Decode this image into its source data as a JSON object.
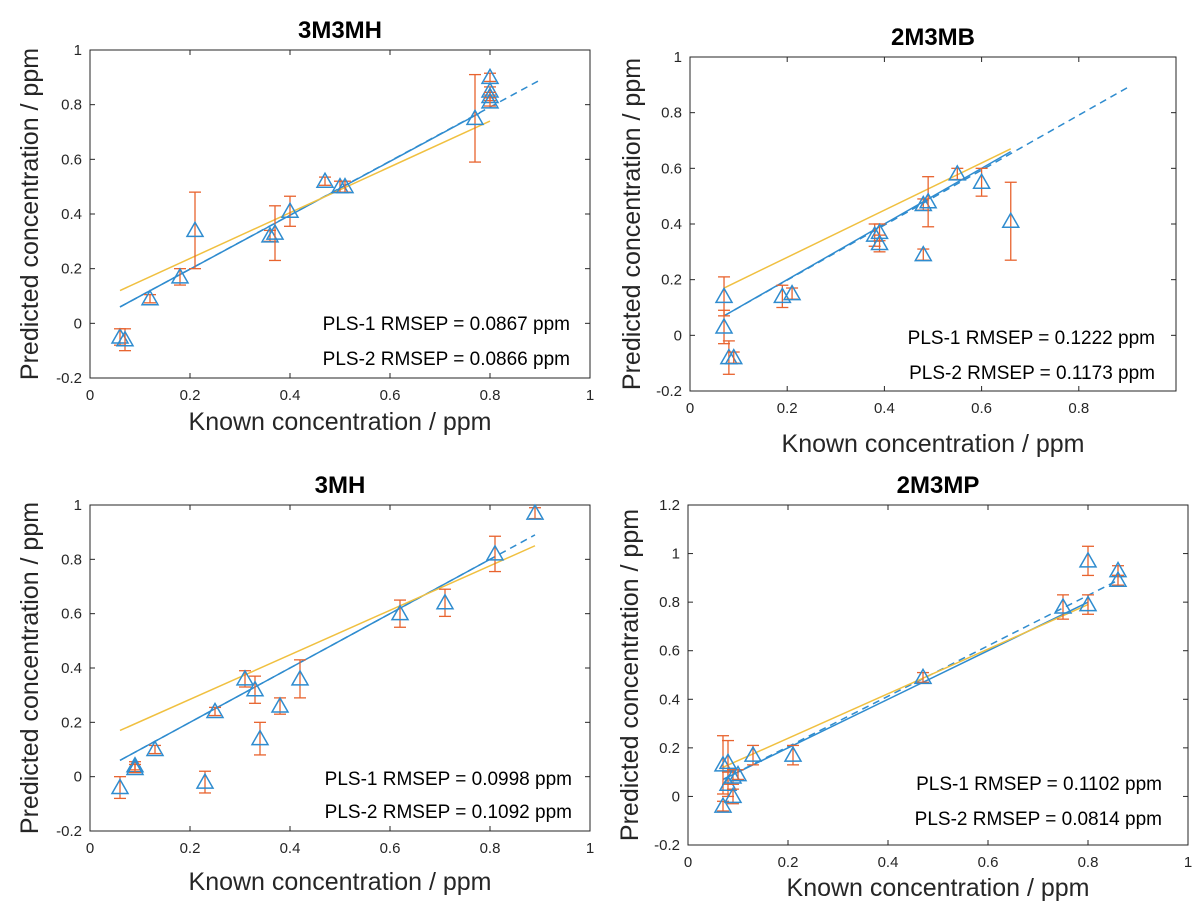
{
  "chart_data": [
    {
      "type": "scatter",
      "title": "3M3MH",
      "xlabel": "Known concentration / ppm",
      "ylabel": "Predicted concentration / ppm",
      "xlim": [
        0,
        1
      ],
      "ylim": [
        -0.2,
        1
      ],
      "xticks": [
        "0",
        "0.2",
        "0.4",
        "0.6",
        "0.8",
        "1"
      ],
      "yticks": [
        "-0.2",
        "0",
        "0.2",
        "0.4",
        "0.6",
        "0.8",
        "1"
      ],
      "grid": false,
      "points": [
        {
          "x": 0.06,
          "y": -0.05,
          "err": 0.03
        },
        {
          "x": 0.07,
          "y": -0.06,
          "err": 0.04
        },
        {
          "x": 0.12,
          "y": 0.09,
          "err": 0.015
        },
        {
          "x": 0.18,
          "y": 0.17,
          "err": 0.03
        },
        {
          "x": 0.21,
          "y": 0.34,
          "err": 0.14
        },
        {
          "x": 0.36,
          "y": 0.32,
          "err": 0.02
        },
        {
          "x": 0.37,
          "y": 0.33,
          "err": 0.1
        },
        {
          "x": 0.4,
          "y": 0.41,
          "err": 0.055
        },
        {
          "x": 0.47,
          "y": 0.52,
          "err": 0.015
        },
        {
          "x": 0.5,
          "y": 0.5,
          "err": 0.02
        },
        {
          "x": 0.51,
          "y": 0.5,
          "err": 0.02
        },
        {
          "x": 0.77,
          "y": 0.75,
          "err": 0.16
        },
        {
          "x": 0.8,
          "y": 0.9,
          "err": 0.015
        },
        {
          "x": 0.8,
          "y": 0.85,
          "err": 0.015
        },
        {
          "x": 0.8,
          "y": 0.83,
          "err": 0.015
        },
        {
          "x": 0.8,
          "y": 0.81,
          "err": 0.015
        }
      ],
      "fit_lines": [
        {
          "style": "dashed",
          "color": "#2f8ccf",
          "x": [
            0.06,
            0.9
          ],
          "y": [
            0.06,
            0.89
          ]
        },
        {
          "style": "solid",
          "color": "#2f8ccf",
          "x": [
            0.06,
            0.78
          ],
          "y": [
            0.06,
            0.77
          ]
        },
        {
          "style": "solid",
          "color": "#f0c040",
          "x": [
            0.06,
            0.8
          ],
          "y": [
            0.12,
            0.74
          ]
        }
      ],
      "annotations": [
        "PLS-1 RMSEP = 0.0867 ppm",
        "PLS-2 RMSEP = 0.0866 ppm"
      ]
    },
    {
      "type": "scatter",
      "title": "2M3MB",
      "xlabel": "Known concentration / ppm",
      "ylabel": "Predicted concentration / ppm",
      "xlim": [
        0,
        1
      ],
      "ylim": [
        -0.2,
        1
      ],
      "xticks": [
        "0",
        "0.2",
        "0.4",
        "0.6",
        "0.8",
        ""
      ],
      "yticks": [
        "-0.2",
        "0",
        "0.2",
        "0.4",
        "0.6",
        "0.8",
        "1"
      ],
      "grid": false,
      "points": [
        {
          "x": 0.07,
          "y": 0.14,
          "err": 0.07
        },
        {
          "x": 0.07,
          "y": 0.03,
          "err": 0.06
        },
        {
          "x": 0.08,
          "y": -0.08,
          "err": 0.06
        },
        {
          "x": 0.09,
          "y": -0.08,
          "err": 0.02
        },
        {
          "x": 0.19,
          "y": 0.14,
          "err": 0.04
        },
        {
          "x": 0.21,
          "y": 0.15,
          "err": 0.02
        },
        {
          "x": 0.38,
          "y": 0.36,
          "err": 0.04
        },
        {
          "x": 0.39,
          "y": 0.37,
          "err": 0.03
        },
        {
          "x": 0.39,
          "y": 0.33,
          "err": 0.03
        },
        {
          "x": 0.48,
          "y": 0.47,
          "err": 0.02
        },
        {
          "x": 0.48,
          "y": 0.29,
          "err": 0.02
        },
        {
          "x": 0.49,
          "y": 0.48,
          "err": 0.09
        },
        {
          "x": 0.55,
          "y": 0.58,
          "err": 0.02
        },
        {
          "x": 0.6,
          "y": 0.55,
          "err": 0.05
        },
        {
          "x": 0.66,
          "y": 0.41,
          "err": 0.14
        }
      ],
      "fit_lines": [
        {
          "style": "dashed",
          "color": "#2f8ccf",
          "x": [
            0.07,
            0.9
          ],
          "y": [
            0.07,
            0.89
          ]
        },
        {
          "style": "solid",
          "color": "#2f8ccf",
          "x": [
            0.07,
            0.66
          ],
          "y": [
            0.07,
            0.66
          ]
        },
        {
          "style": "solid",
          "color": "#f0c040",
          "x": [
            0.07,
            0.66
          ],
          "y": [
            0.17,
            0.67
          ]
        }
      ],
      "annotations": [
        "PLS-1 RMSEP = 0.1222 ppm",
        "PLS-2 RMSEP = 0.1173 ppm"
      ]
    },
    {
      "type": "scatter",
      "title": "3MH",
      "xlabel": "Known concentration / ppm",
      "ylabel": "Predicted concentration / ppm",
      "xlim": [
        0,
        1
      ],
      "ylim": [
        -0.2,
        1
      ],
      "xticks": [
        "0",
        "0.2",
        "0.4",
        "0.6",
        "0.8",
        "1"
      ],
      "yticks": [
        "-0.2",
        "0",
        "0.2",
        "0.4",
        "0.6",
        "0.8",
        "1"
      ],
      "grid": false,
      "points": [
        {
          "x": 0.06,
          "y": -0.04,
          "err": 0.04
        },
        {
          "x": 0.09,
          "y": 0.04,
          "err": 0.015
        },
        {
          "x": 0.09,
          "y": 0.03,
          "err": 0.015
        },
        {
          "x": 0.13,
          "y": 0.1,
          "err": 0.015
        },
        {
          "x": 0.23,
          "y": -0.02,
          "err": 0.04
        },
        {
          "x": 0.25,
          "y": 0.24,
          "err": 0.015
        },
        {
          "x": 0.31,
          "y": 0.36,
          "err": 0.03
        },
        {
          "x": 0.33,
          "y": 0.32,
          "err": 0.05
        },
        {
          "x": 0.34,
          "y": 0.14,
          "err": 0.06
        },
        {
          "x": 0.38,
          "y": 0.26,
          "err": 0.03
        },
        {
          "x": 0.42,
          "y": 0.36,
          "err": 0.07
        },
        {
          "x": 0.62,
          "y": 0.6,
          "err": 0.05
        },
        {
          "x": 0.71,
          "y": 0.64,
          "err": 0.05
        },
        {
          "x": 0.81,
          "y": 0.82,
          "err": 0.065
        },
        {
          "x": 0.89,
          "y": 0.97,
          "err": 0.02
        }
      ],
      "fit_lines": [
        {
          "style": "dashed",
          "color": "#2f8ccf",
          "x": [
            0.06,
            0.89
          ],
          "y": [
            0.06,
            0.89
          ]
        },
        {
          "style": "solid",
          "color": "#2f8ccf",
          "x": [
            0.06,
            0.81
          ],
          "y": [
            0.06,
            0.81
          ]
        },
        {
          "style": "solid",
          "color": "#f0c040",
          "x": [
            0.06,
            0.89
          ],
          "y": [
            0.17,
            0.85
          ]
        }
      ],
      "annotations": [
        "PLS-1 RMSEP = 0.0998 ppm",
        "PLS-2 RMSEP = 0.1092 ppm"
      ]
    },
    {
      "type": "scatter",
      "title": "2M3MP",
      "xlabel": "Known concentration / ppm",
      "ylabel": "Predicted concentration / ppm",
      "xlim": [
        0,
        1
      ],
      "ylim": [
        -0.2,
        1.2
      ],
      "xticks": [
        "0",
        "0.2",
        "0.4",
        "0.6",
        "0.8",
        "1"
      ],
      "yticks": [
        "-0.2",
        "0",
        "0.2",
        "0.4",
        "0.6",
        "0.8",
        "1",
        "1.2"
      ],
      "grid": false,
      "points": [
        {
          "x": 0.07,
          "y": 0.13,
          "err": 0.12
        },
        {
          "x": 0.07,
          "y": -0.04,
          "err": 0.02
        },
        {
          "x": 0.08,
          "y": 0.14,
          "err": 0.09
        },
        {
          "x": 0.08,
          "y": 0.05,
          "err": 0.05
        },
        {
          "x": 0.09,
          "y": 0.0,
          "err": 0.03
        },
        {
          "x": 0.09,
          "y": 0.08,
          "err": 0.03
        },
        {
          "x": 0.1,
          "y": 0.09,
          "err": 0.02
        },
        {
          "x": 0.13,
          "y": 0.17,
          "err": 0.04
        },
        {
          "x": 0.21,
          "y": 0.17,
          "err": 0.04
        },
        {
          "x": 0.47,
          "y": 0.49,
          "err": 0.02
        },
        {
          "x": 0.75,
          "y": 0.78,
          "err": 0.05
        },
        {
          "x": 0.8,
          "y": 0.97,
          "err": 0.06
        },
        {
          "x": 0.8,
          "y": 0.79,
          "err": 0.04
        },
        {
          "x": 0.86,
          "y": 0.93,
          "err": 0.02
        },
        {
          "x": 0.86,
          "y": 0.89,
          "err": 0.02
        }
      ],
      "fit_lines": [
        {
          "style": "dashed",
          "color": "#2f8ccf",
          "x": [
            0.07,
            0.86
          ],
          "y": [
            0.07,
            0.89
          ]
        },
        {
          "style": "solid",
          "color": "#2f8ccf",
          "x": [
            0.07,
            0.8
          ],
          "y": [
            0.07,
            0.8
          ]
        },
        {
          "style": "solid",
          "color": "#f0c040",
          "x": [
            0.07,
            0.8
          ],
          "y": [
            0.12,
            0.79
          ]
        }
      ],
      "annotations": [
        "PLS-1 RMSEP = 0.1102 ppm",
        "PLS-2 RMSEP = 0.0814 ppm"
      ]
    }
  ],
  "colors": {
    "marker": "#2f8ccf",
    "errorbar": "#e8632e",
    "fit_yellow": "#f0c040",
    "axis": "#262626"
  }
}
